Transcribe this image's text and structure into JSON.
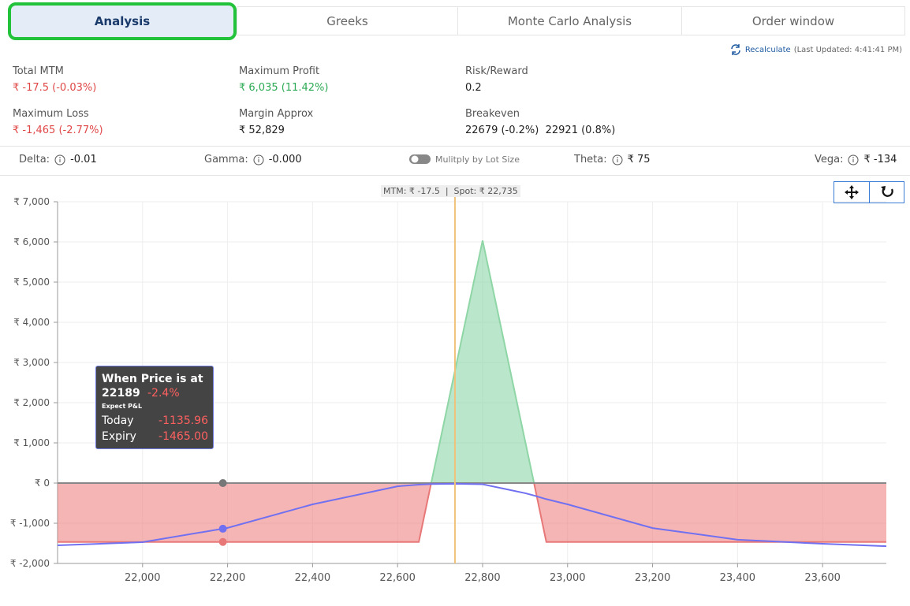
{
  "tabs": [
    "Analysis",
    "Greeks",
    "Monte Carlo Analysis",
    "Order window"
  ],
  "recalculate": {
    "label": "Recalculate",
    "last_updated": "(Last Updated: 4:41:41 PM)"
  },
  "stats": [
    {
      "label": "Total MTM",
      "value": "₹ -17.5 (-0.03%)"
    },
    {
      "label": "Maximum Profit",
      "value": "₹ 6,035 (11.42%)"
    },
    {
      "label": "Risk/Reward",
      "value": "0.2"
    },
    {
      "label": "Maximum Loss",
      "value": "₹ -1,465 (-2.77%)"
    },
    {
      "label": "Margin Approx",
      "value": "₹ 52,829"
    },
    {
      "label": "Breakeven",
      "value": "22679 (-0.2%)  22921 (0.8%)"
    }
  ],
  "greeks": [
    {
      "label": "Delta:",
      "value": "-0.01"
    },
    {
      "label": "Gamma:",
      "value": "-0.000"
    },
    {
      "label": "Theta:",
      "value": "₹ 75"
    },
    {
      "label": "Vega:",
      "value": "₹ -134"
    }
  ],
  "toggle": {
    "label": "Mulitply by Lot Size"
  },
  "chart_data": {
    "type": "line",
    "header_label": "MTM: ₹ -17.5  |  Spot: ₹ 22,735",
    "spot": 22735,
    "x": [
      21800,
      22000,
      22189,
      22200,
      22400,
      22600,
      22650,
      22679,
      22735,
      22800,
      22900,
      22921,
      22950,
      23000,
      23200,
      23400,
      23600,
      23750
    ],
    "series": [
      {
        "name": "Today",
        "color": "#7070f0",
        "values": [
          -1550,
          -1470,
          -1135.96,
          -1115,
          -530,
          -80,
          -40,
          -25,
          -17.5,
          -30,
          -250,
          -310,
          -400,
          -530,
          -1120,
          -1410,
          -1510,
          -1570
        ]
      },
      {
        "name": "Expiry",
        "color": "#e87878",
        "values": [
          -1465,
          -1465,
          -1465,
          -1465,
          -1465,
          -1465,
          -1465,
          0,
          2793,
          6035,
          1047,
          0,
          -1465,
          -1465,
          -1465,
          -1465,
          -1465,
          -1465
        ]
      }
    ],
    "xlim": [
      21800,
      23750
    ],
    "ylim": [
      -2000,
      7000
    ],
    "xticks": [
      {
        "value": 22000,
        "label": "22,000"
      },
      {
        "value": 22200,
        "label": "22,200"
      },
      {
        "value": 22400,
        "label": "22,400"
      },
      {
        "value": 22600,
        "label": "22,600"
      },
      {
        "value": 22800,
        "label": "22,800"
      },
      {
        "value": 23000,
        "label": "23,000"
      },
      {
        "value": 23200,
        "label": "23,200"
      },
      {
        "value": 23400,
        "label": "23,400"
      },
      {
        "value": 23600,
        "label": "23,600"
      }
    ],
    "yticks": [
      {
        "value": 7000,
        "label": "₹ 7,000"
      },
      {
        "value": 6000,
        "label": "₹ 6,000"
      },
      {
        "value": 5000,
        "label": "₹ 5,000"
      },
      {
        "value": 4000,
        "label": "₹ 4,000"
      },
      {
        "value": 3000,
        "label": "₹ 3,000"
      },
      {
        "value": 2000,
        "label": "₹ 2,000"
      },
      {
        "value": 1000,
        "label": "₹ 1,000"
      },
      {
        "value": 0,
        "label": "₹ 0"
      },
      {
        "value": -1000,
        "label": "₹ -1,000"
      },
      {
        "value": -2000,
        "label": "₹ -2,000"
      }
    ],
    "grid": true,
    "tooltip": {
      "title": "When Price is at",
      "x": 22189,
      "change": "-2.4%",
      "subtitle": "Expect P&L",
      "values": [
        -1135.96,
        -1465
      ],
      "value_labels": [
        "-1135.96",
        "-1465.00"
      ]
    }
  }
}
